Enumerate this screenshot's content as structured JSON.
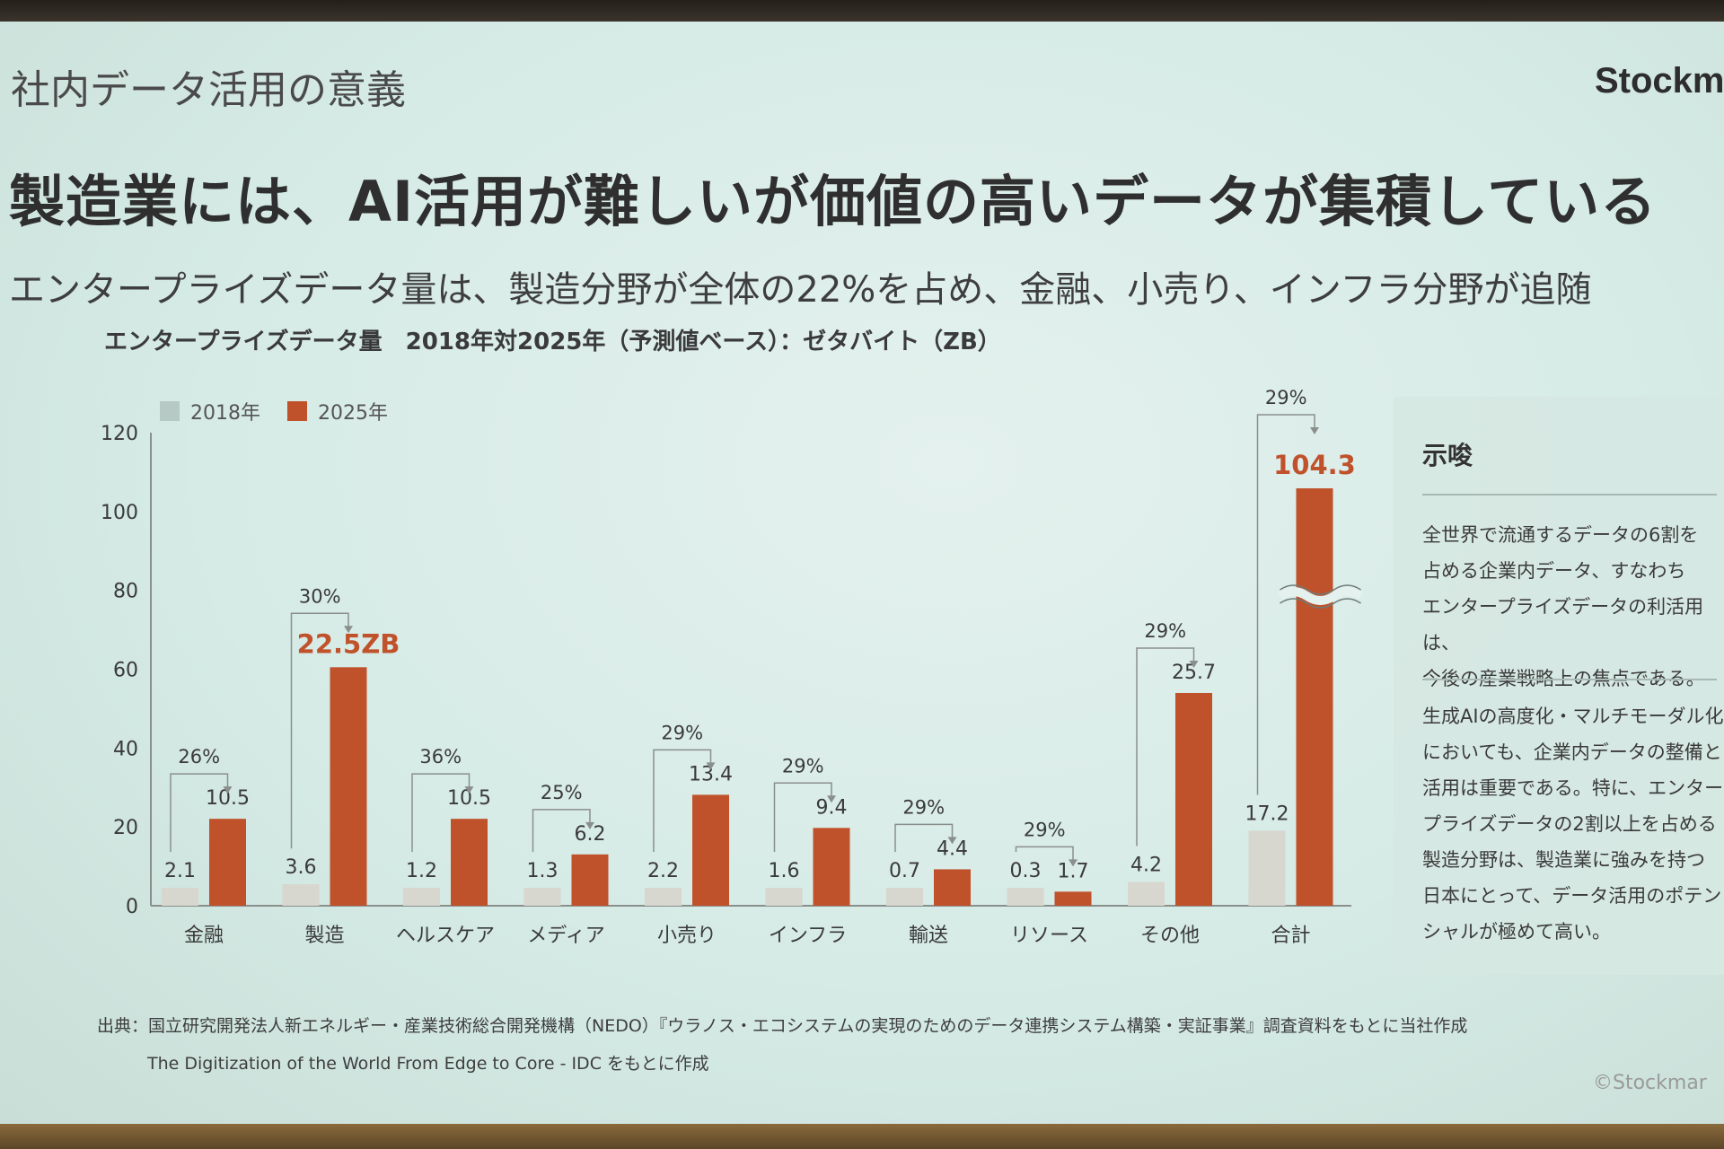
{
  "slide": {
    "section_title": "社内データ活用の意義",
    "brand": "Stockm",
    "headline": "製造業には、AI活用が難しいが価値の高いデータが集積している",
    "subhead": "エンタープライズデータ量は、製造分野が全体の22%を占め、金融、小売り、インフラ分野が追随",
    "chart_title": "エンタープライズデータ量　2018年対2025年（予測値ベース）：ゼタバイト（ZB）",
    "legend": [
      {
        "label": "2018年",
        "color": "#d7d6cf"
      },
      {
        "label": "2025年",
        "color": "#c0522b"
      }
    ],
    "sidebar": {
      "heading": "示唆",
      "paragraph1": "全世界で流通するデータの6割を\n占める企業内データ、すなわち\nエンタープライズデータの利活用は、\n今後の産業戦略上の焦点である。",
      "paragraph2": "生成AIの高度化・マルチモーダル化\nにおいても、企業内データの整備と\n活用は重要である。特に、エンター\nプライズデータの2割以上を占める\n製造分野は、製造業に強みを持つ\n日本にとって、データ活用のポテン\nシャルが極めて高い。"
    },
    "source_line1": "出典：国立研究開発法人新エネルギー・産業技術総合開発機構（NEDO）『ウラノス・エコシステムの実現のためのデータ連携システム構築・実証事業』調査資料をもとに当社作成",
    "source_line2": "The Digitization of the World From Edge to Core - IDC をもとに作成",
    "copyright": "©Stockmar"
  },
  "chart_data": {
    "type": "bar",
    "categories": [
      "金融",
      "製造",
      "ヘルスケア",
      "メディア",
      "小売り",
      "インフラ",
      "輸送",
      "リソース",
      "その他",
      "合計"
    ],
    "series": [
      {
        "name": "2018年",
        "values": [
          2.1,
          3.6,
          1.2,
          1.3,
          2.2,
          1.6,
          0.7,
          0.3,
          4.2,
          17.2
        ],
        "labels": [
          "2.1",
          "3.6",
          "1.2",
          "1.3",
          "2.2",
          "1.6",
          "0.7",
          "0.3",
          "4.2",
          "17.2"
        ],
        "color": "#d7d6cf"
      },
      {
        "name": "2025年",
        "values": [
          10.5,
          22.5,
          10.5,
          6.2,
          13.4,
          9.4,
          4.4,
          1.7,
          25.7,
          104.3
        ],
        "labels": [
          "10.5",
          "22.5ZB",
          "10.5",
          "6.2",
          "13.4",
          "9.4",
          "4.4",
          "1.7",
          "25.7",
          "104.3"
        ],
        "color": "#c0522b"
      }
    ],
    "growth_labels": [
      "26%",
      "30%",
      "36%",
      "25%",
      "29%",
      "29%",
      "29%",
      "29%",
      "29%",
      "29%"
    ],
    "highlight_labels": [
      1,
      9
    ],
    "ylim": [
      0,
      120
    ],
    "yticks": [
      0,
      20,
      40,
      60,
      80,
      100,
      120
    ],
    "axis_break_category": 9,
    "colors": {
      "accent": "#c0522b",
      "base": "#d7d6cf",
      "axis": "#8a8f8c",
      "text": "#3a3a3a"
    }
  }
}
